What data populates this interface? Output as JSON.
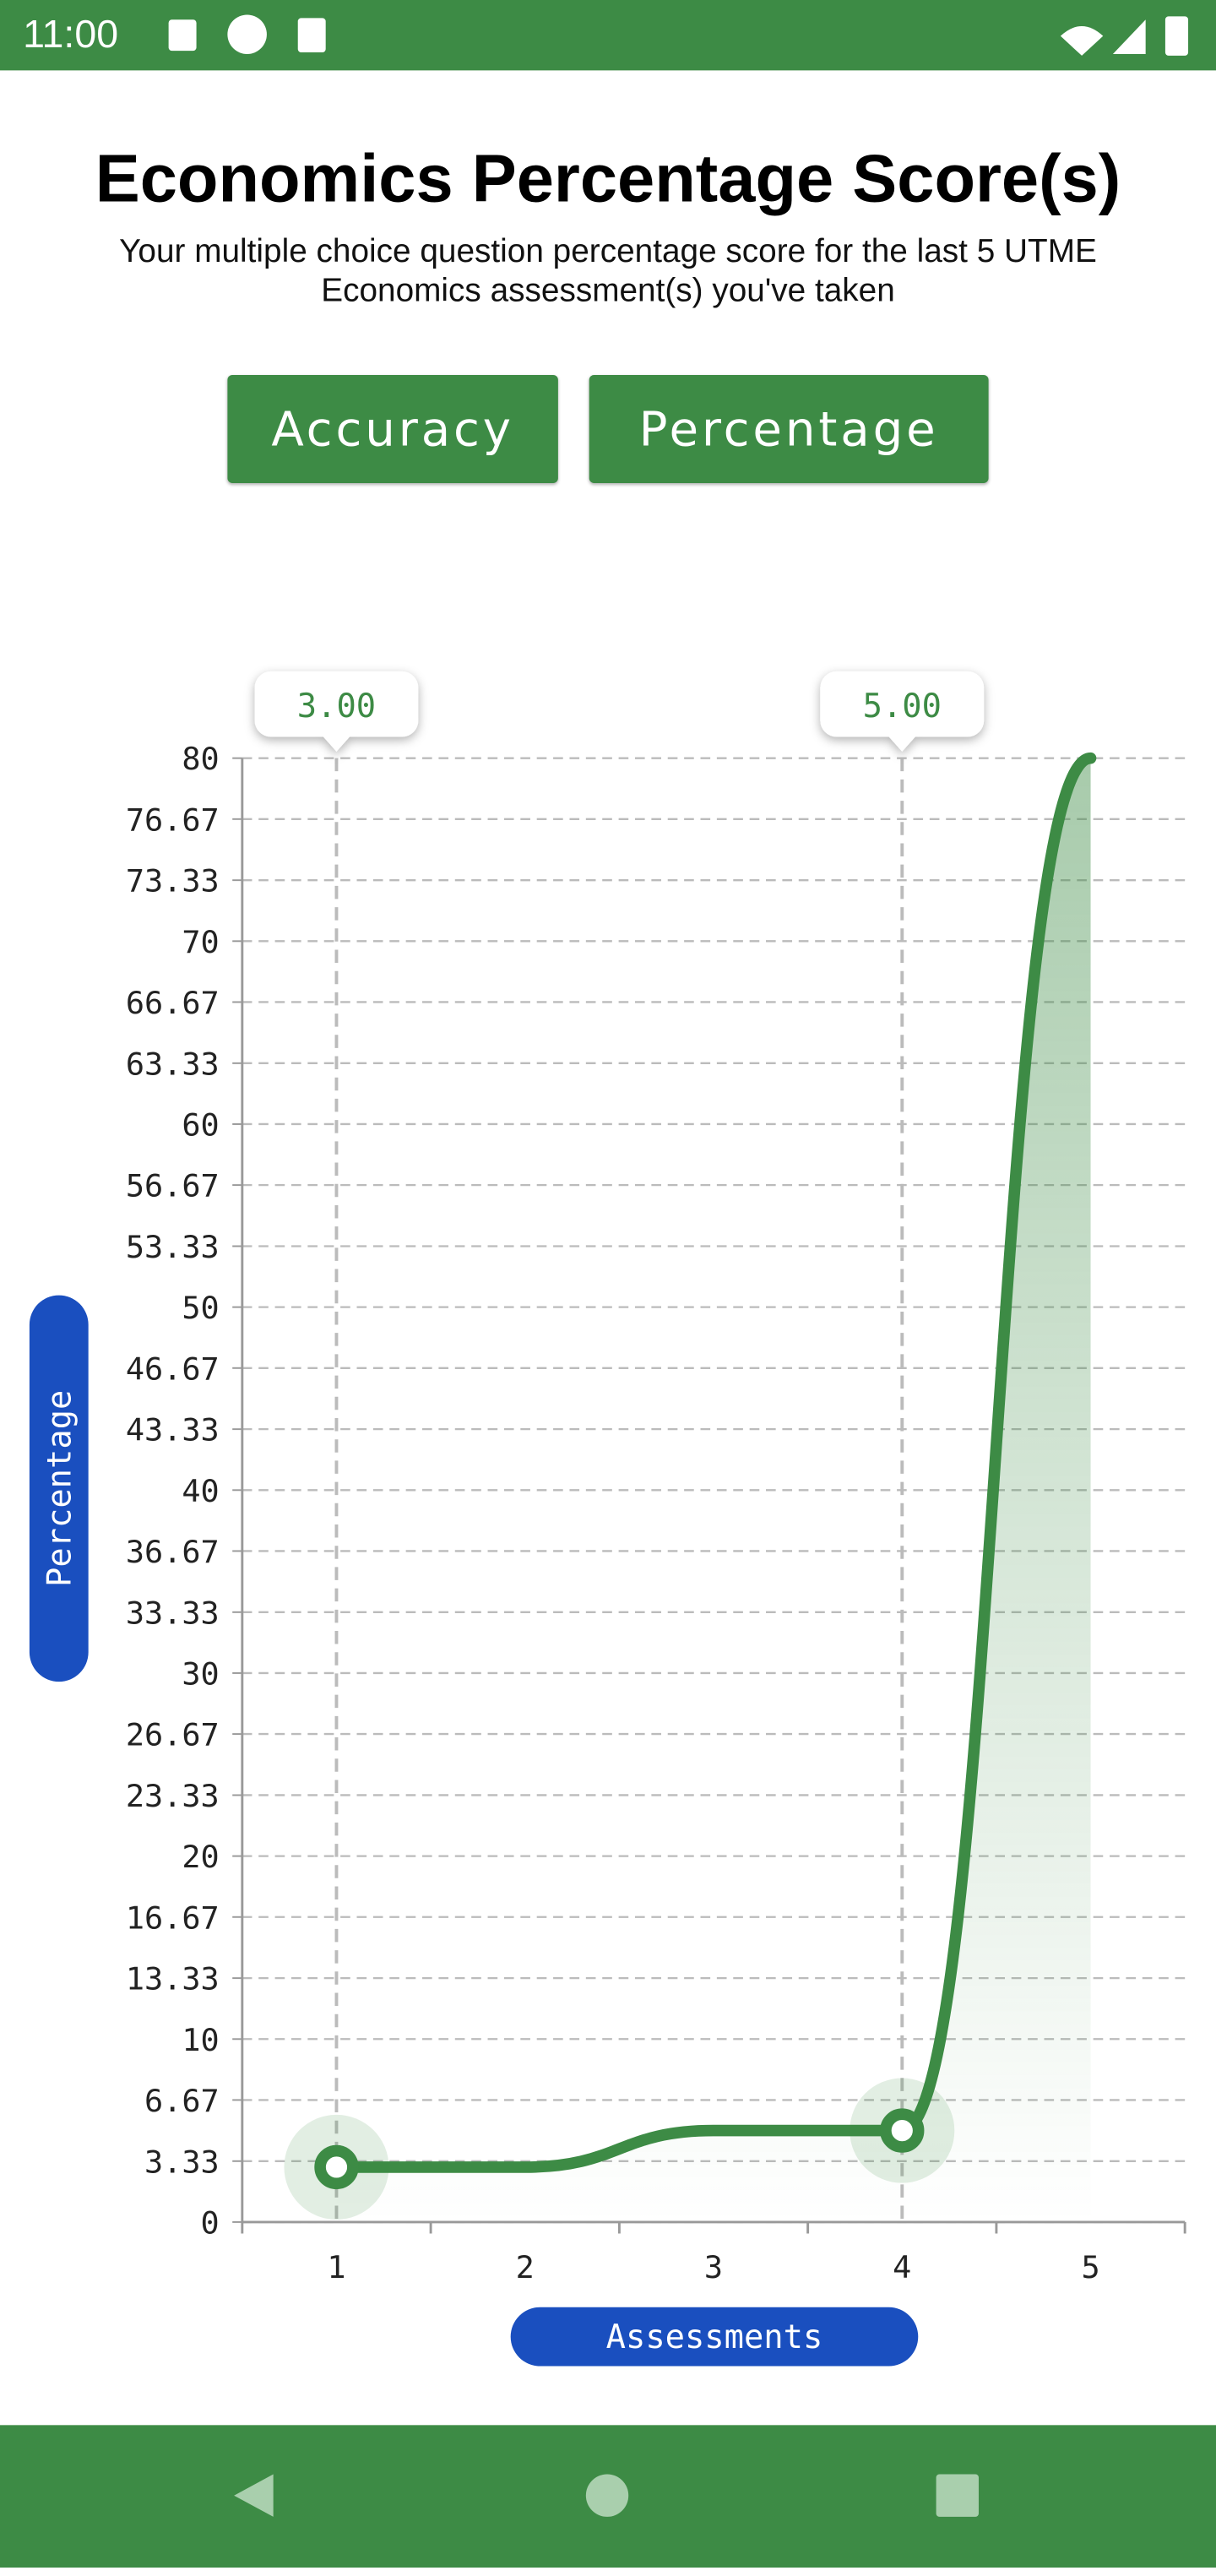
{
  "status_bar": {
    "time": "11:00"
  },
  "header": {
    "title": "Economics Percentage Score(s)",
    "subtitle": "Your multiple choice question percentage score for the last 5 UTME Economics assessment(s) you've taken"
  },
  "buttons": [
    "Accuracy",
    "Percentage"
  ],
  "chart_data": {
    "type": "line",
    "color": "#3d8b45",
    "categories": [
      "1",
      "2",
      "3",
      "4",
      "5"
    ],
    "values": [
      3,
      3,
      5,
      5,
      80
    ],
    "value_labels": [
      "3.00",
      null,
      null,
      "5.00",
      null
    ],
    "y_label": "Percentage",
    "x_label": "Assessments",
    "ylim": [
      0,
      80
    ],
    "yticks": [
      0,
      3.33,
      6.67,
      10,
      13.33,
      16.67,
      20,
      23.33,
      26.67,
      30,
      33.33,
      36.67,
      40,
      43.33,
      46.67,
      50,
      53.33,
      56.67,
      60,
      63.33,
      66.67,
      70,
      73.33,
      76.67,
      80
    ],
    "grid": true
  }
}
